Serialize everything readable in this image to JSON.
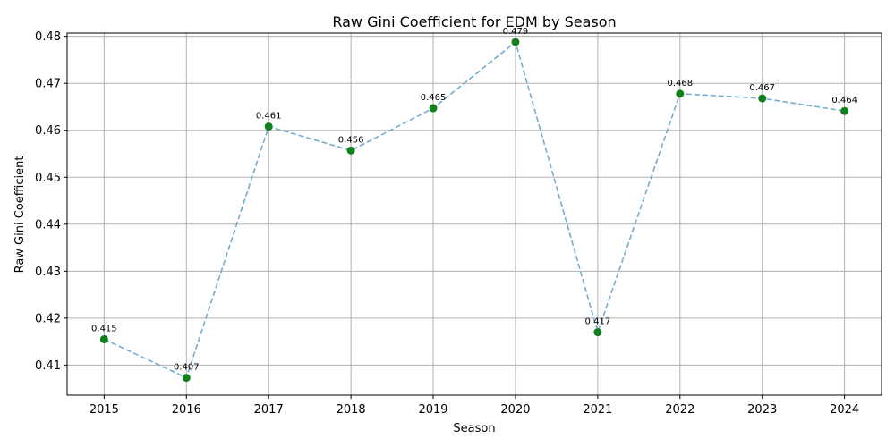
{
  "chart_data": {
    "type": "line",
    "title": "Raw Gini Coefficient for EDM by Season",
    "xlabel": "Season",
    "ylabel": "Raw Gini Coefficient",
    "x": [
      "2015",
      "2016",
      "2017",
      "2018",
      "2019",
      "2020",
      "2021",
      "2022",
      "2023",
      "2024"
    ],
    "values": [
      0.4155,
      0.4073,
      0.4608,
      0.4557,
      0.4647,
      0.4788,
      0.417,
      0.4678,
      0.4668,
      0.4641
    ],
    "data_labels": [
      "0.415",
      "0.407",
      "0.461",
      "0.456",
      "0.465",
      "0.479",
      "0.417",
      "0.468",
      "0.467",
      "0.464"
    ],
    "yticks": [
      "0.41",
      "0.42",
      "0.43",
      "0.44",
      "0.45",
      "0.46",
      "0.47",
      "0.48"
    ],
    "ylim": [
      0.4036,
      0.4807
    ],
    "grid": true,
    "line_style": "dashed",
    "colors": {
      "line": "#74acd0",
      "marker": "#127f1f",
      "grid": "#b0b0b0"
    }
  }
}
